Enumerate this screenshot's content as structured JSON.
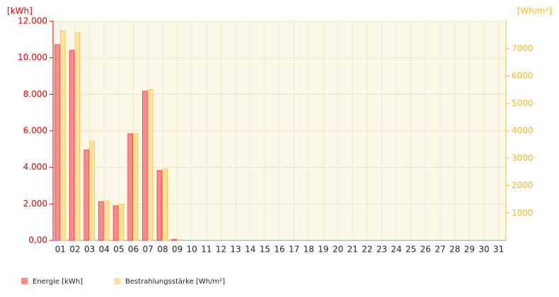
{
  "chart_data": {
    "type": "bar",
    "y_label": "[kWh]",
    "y2_label": "[Wh/m²]",
    "categories": [
      "01",
      "02",
      "03",
      "04",
      "05",
      "06",
      "07",
      "08",
      "09",
      "10",
      "11",
      "12",
      "13",
      "14",
      "15",
      "16",
      "17",
      "18",
      "19",
      "20",
      "21",
      "22",
      "23",
      "24",
      "25",
      "26",
      "27",
      "28",
      "29",
      "30",
      "31"
    ],
    "series": [
      {
        "name": "Energie [kWh]",
        "color": "#ff8a8a",
        "values": [
          10720,
          10410,
          4955,
          2130,
          1900,
          5845,
          8170,
          3830,
          50,
          null,
          null,
          null,
          null,
          null,
          null,
          null,
          null,
          null,
          null,
          null,
          null,
          null,
          null,
          null,
          null,
          null,
          null,
          null,
          null,
          null,
          null
        ]
      },
      {
        "name": "Bestrahlungsstärke [Wh/m²]",
        "color": "#ffe199",
        "axis": "y2",
        "values": [
          7655,
          7577,
          3620,
          1450,
          1320,
          3900,
          5510,
          2610,
          30,
          null,
          null,
          null,
          null,
          null,
          null,
          null,
          null,
          null,
          null,
          null,
          null,
          null,
          null,
          null,
          null,
          null,
          null,
          null,
          null,
          null,
          null
        ]
      }
    ],
    "ylim": [
      0,
      12000
    ],
    "yticks": [
      {
        "value": 0,
        "label": "0,00"
      },
      {
        "value": 2000,
        "label": "2.000"
      },
      {
        "value": 4000,
        "label": "4.000"
      },
      {
        "value": 6000,
        "label": "6.000"
      },
      {
        "value": 8000,
        "label": "8.000"
      },
      {
        "value": 10000,
        "label": "10.000"
      },
      {
        "value": 12000,
        "label": "12.000"
      }
    ],
    "y2lim": [
      0,
      8000
    ],
    "y2ticks": [
      1000,
      2000,
      3000,
      4000,
      5000,
      6000,
      7000
    ],
    "grid": true
  }
}
